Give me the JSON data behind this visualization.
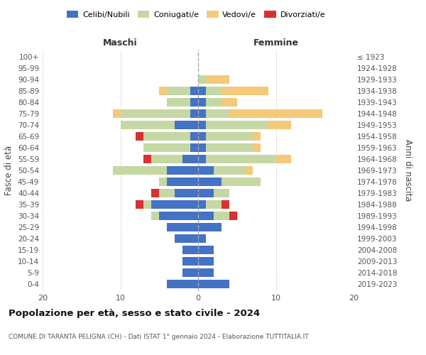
{
  "age_groups": [
    "0-4",
    "5-9",
    "10-14",
    "15-19",
    "20-24",
    "25-29",
    "30-34",
    "35-39",
    "40-44",
    "45-49",
    "50-54",
    "55-59",
    "60-64",
    "65-69",
    "70-74",
    "75-79",
    "80-84",
    "85-89",
    "90-94",
    "95-99",
    "100+"
  ],
  "birth_years": [
    "2019-2023",
    "2014-2018",
    "2009-2013",
    "2004-2008",
    "1999-2003",
    "1994-1998",
    "1989-1993",
    "1984-1988",
    "1979-1983",
    "1974-1978",
    "1969-1973",
    "1964-1968",
    "1959-1963",
    "1954-1958",
    "1949-1953",
    "1944-1948",
    "1939-1943",
    "1934-1938",
    "1929-1933",
    "1924-1928",
    "≤ 1923"
  ],
  "colors": {
    "celibe": "#4472c4",
    "coniugato": "#c5d8a4",
    "vedovo": "#f5c97a",
    "divorziato": "#d93030"
  },
  "maschi": {
    "celibe": [
      4,
      2,
      2,
      2,
      3,
      4,
      5,
      6,
      3,
      4,
      4,
      2,
      1,
      1,
      3,
      1,
      1,
      1,
      0,
      0,
      0
    ],
    "coniugato": [
      0,
      0,
      0,
      0,
      0,
      0,
      1,
      1,
      2,
      1,
      7,
      4,
      6,
      6,
      7,
      9,
      3,
      3,
      0,
      0,
      0
    ],
    "vedovo": [
      0,
      0,
      0,
      0,
      0,
      0,
      0,
      0,
      0,
      0,
      0,
      0,
      0,
      0,
      0,
      1,
      0,
      1,
      0,
      0,
      0
    ],
    "divorziato": [
      0,
      0,
      0,
      0,
      0,
      0,
      0,
      1,
      1,
      0,
      0,
      1,
      0,
      1,
      0,
      0,
      0,
      0,
      0,
      0,
      0
    ]
  },
  "femmine": {
    "nubile": [
      4,
      2,
      2,
      2,
      1,
      3,
      2,
      1,
      2,
      3,
      2,
      1,
      1,
      1,
      1,
      1,
      1,
      1,
      0,
      0,
      0
    ],
    "coniugata": [
      0,
      0,
      0,
      0,
      0,
      0,
      2,
      2,
      2,
      5,
      4,
      9,
      6,
      6,
      8,
      3,
      2,
      2,
      1,
      0,
      0
    ],
    "vedova": [
      0,
      0,
      0,
      0,
      0,
      0,
      0,
      0,
      0,
      0,
      1,
      2,
      1,
      1,
      3,
      12,
      2,
      6,
      3,
      0,
      0
    ],
    "divorziata": [
      0,
      0,
      0,
      0,
      0,
      0,
      1,
      1,
      0,
      0,
      0,
      0,
      0,
      0,
      0,
      0,
      0,
      0,
      0,
      0,
      0
    ]
  },
  "title": "Popolazione per età, sesso e stato civile - 2024",
  "subtitle": "COMUNE DI TARANTA PELIGNA (CH) - Dati ISTAT 1° gennaio 2024 - Elaborazione TUTTITALIA.IT",
  "xlabel_left": "Maschi",
  "xlabel_right": "Femmine",
  "ylabel_left": "Fasce di età",
  "ylabel_right": "Anni di nascita",
  "xlim": 20,
  "legend_labels": [
    "Celibi/Nubili",
    "Coniugati/e",
    "Vedovi/e",
    "Divorziati/e"
  ],
  "background_color": "#ffffff",
  "grid_color": "#cccccc"
}
